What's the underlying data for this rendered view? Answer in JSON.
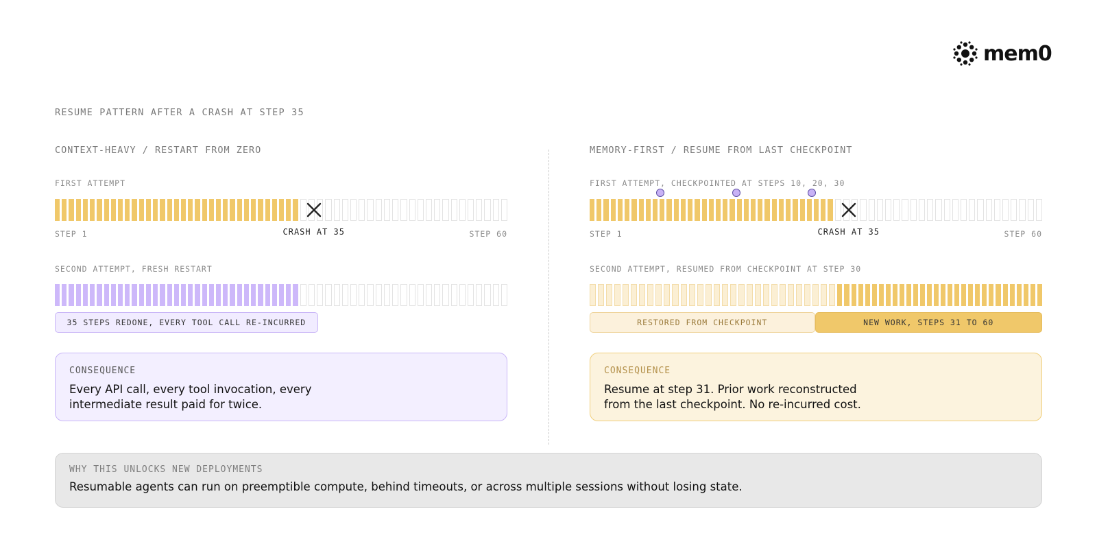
{
  "logo": {
    "icon": "mem0-flower-icon",
    "word": "mem0"
  },
  "heading": "RESUME PATTERN AFTER A CRASH AT STEP 35",
  "left": {
    "title": "CONTEXT-HEAVY / RESTART FROM ZERO",
    "first": {
      "label": "FIRST ATTEMPT",
      "total_steps": 60,
      "completed_steps": 35,
      "crash_step": 35,
      "start_label": "STEP 1",
      "end_label": "STEP 60",
      "crash_label": "CRASH AT 35"
    },
    "second": {
      "label": "SECOND ATTEMPT, FRESH RESTART",
      "total_steps": 60,
      "redone_steps": 35,
      "tag": "35 STEPS REDONE, EVERY TOOL CALL RE-INCURRED"
    },
    "card": {
      "label": "CONSEQUENCE",
      "line1": "Every API call, every tool invocation, every",
      "line2": "intermediate result paid for twice."
    }
  },
  "right": {
    "title": "MEMORY-FIRST / RESUME FROM LAST CHECKPOINT",
    "first": {
      "label": "FIRST ATTEMPT, CHECKPOINTED AT STEPS 10, 20, 30",
      "total_steps": 60,
      "completed_steps": 35,
      "crash_step": 35,
      "checkpoints": [
        10,
        20,
        30
      ],
      "start_label": "STEP 1",
      "end_label": "STEP 60",
      "crash_label": "CRASH AT 35"
    },
    "second": {
      "label": "SECOND ATTEMPT, RESUMED FROM CHECKPOINT AT STEP 30",
      "total_steps": 60,
      "restored_steps": 30,
      "restored_tag": "RESTORED FROM CHECKPOINT",
      "new_tag": "NEW WORK, STEPS 31 TO 60"
    },
    "card": {
      "label": "CONSEQUENCE",
      "line1": "Resume at step 31. Prior work reconstructed",
      "line2": "from the last checkpoint. No re-incurred cost."
    }
  },
  "footer": {
    "label": "WHY THIS UNLOCKS NEW DEPLOYMENTS",
    "text": "Resumable agents can run on preemptible compute, behind timeouts, or across multiple sessions without losing state."
  },
  "colors": {
    "done": "#f0c86a",
    "redo": "#cdb8fa",
    "restored": "#fbefd4",
    "purple_card": "#f3efff",
    "gold_card": "#fcf3de",
    "footer": "#e8e8e8"
  }
}
